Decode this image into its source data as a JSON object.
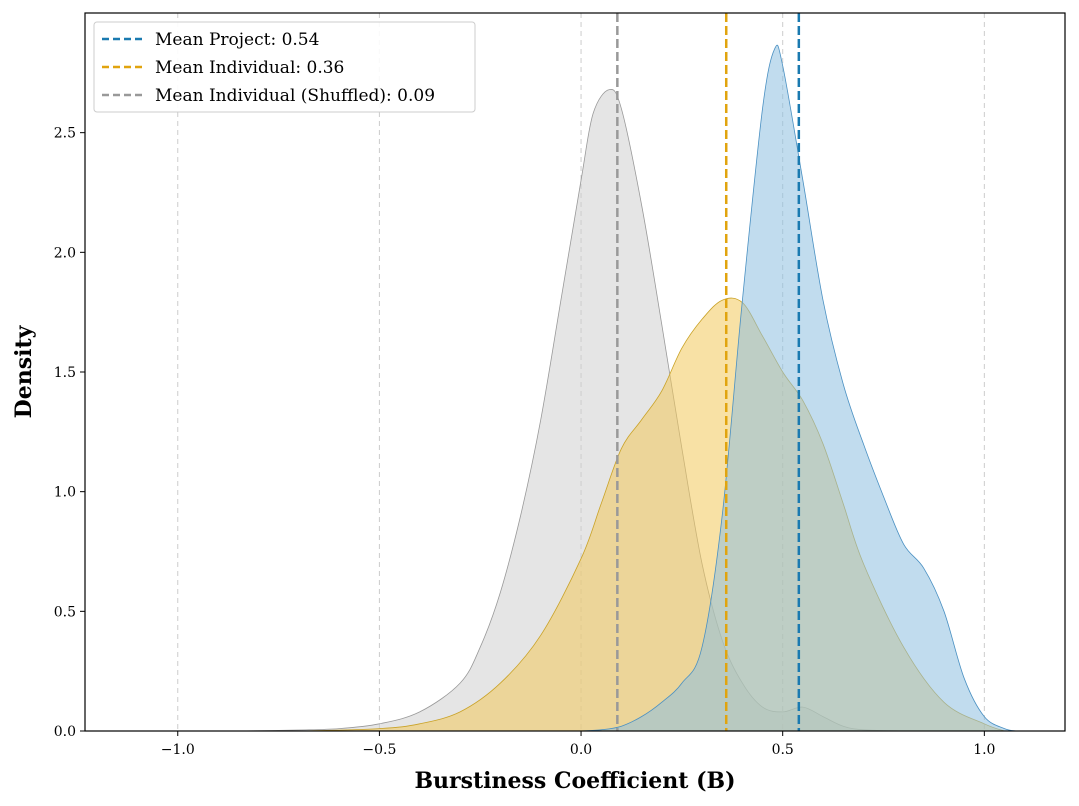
{
  "chart_data": {
    "type": "area",
    "title": "",
    "xlabel": "Burstiness Coefficient (B)",
    "ylabel": "Density",
    "xlim": [
      -1.23,
      1.2
    ],
    "ylim": [
      0,
      3.0
    ],
    "x_ticks": [
      -1.0,
      -0.5,
      0.0,
      0.5,
      1.0
    ],
    "x_tick_labels": [
      "−1.0",
      "−0.5",
      "0.0",
      "0.5",
      "1.0"
    ],
    "y_ticks": [
      0.0,
      0.5,
      1.0,
      1.5,
      2.0,
      2.5
    ],
    "y_tick_labels": [
      "0.0",
      "0.5",
      "1.0",
      "1.5",
      "2.0",
      "2.5"
    ],
    "grid": "vertical dashed",
    "legend_position": "top-left",
    "series": [
      {
        "name": "Individual (Shuffled)",
        "color": "#999999",
        "fill": "#cfcfcf",
        "x": [
          -0.85,
          -0.7,
          -0.6,
          -0.5,
          -0.4,
          -0.3,
          -0.25,
          -0.2,
          -0.15,
          -0.1,
          -0.05,
          0.0,
          0.03,
          0.07,
          0.1,
          0.15,
          0.2,
          0.25,
          0.3,
          0.35,
          0.4,
          0.45,
          0.5,
          0.55,
          0.6,
          0.65,
          0.7,
          0.8
        ],
        "values": [
          0.0,
          0.004,
          0.01,
          0.03,
          0.08,
          0.2,
          0.35,
          0.58,
          0.9,
          1.3,
          1.8,
          2.3,
          2.58,
          2.68,
          2.6,
          2.2,
          1.7,
          1.18,
          0.7,
          0.38,
          0.2,
          0.1,
          0.08,
          0.1,
          0.06,
          0.02,
          0.005,
          0.0
        ]
      },
      {
        "name": "Individual",
        "color": "#c9a227",
        "fill": "#f2c95b",
        "x": [
          -0.7,
          -0.5,
          -0.4,
          -0.3,
          -0.2,
          -0.1,
          0.0,
          0.05,
          0.1,
          0.15,
          0.2,
          0.25,
          0.3,
          0.35,
          0.4,
          0.45,
          0.5,
          0.55,
          0.6,
          0.65,
          0.7,
          0.8,
          0.9,
          1.0,
          1.05
        ],
        "values": [
          0.0,
          0.01,
          0.03,
          0.08,
          0.2,
          0.4,
          0.72,
          0.95,
          1.18,
          1.3,
          1.42,
          1.6,
          1.72,
          1.8,
          1.79,
          1.65,
          1.5,
          1.38,
          1.2,
          0.95,
          0.7,
          0.35,
          0.12,
          0.03,
          0.0
        ]
      },
      {
        "name": "Project",
        "color": "#4a90c2",
        "fill": "#8ec0e0",
        "x": [
          0.0,
          0.05,
          0.1,
          0.15,
          0.2,
          0.25,
          0.3,
          0.35,
          0.4,
          0.45,
          0.48,
          0.5,
          0.55,
          0.6,
          0.65,
          0.7,
          0.75,
          0.8,
          0.85,
          0.9,
          0.95,
          1.0,
          1.05,
          1.08
        ],
        "values": [
          0.0,
          0.005,
          0.02,
          0.06,
          0.12,
          0.2,
          0.35,
          0.9,
          1.8,
          2.6,
          2.85,
          2.78,
          2.3,
          1.8,
          1.45,
          1.2,
          0.98,
          0.78,
          0.68,
          0.5,
          0.22,
          0.06,
          0.01,
          0.0
        ]
      }
    ],
    "mean_lines": [
      {
        "label": "Mean Project: 0.54",
        "x": 0.54,
        "color": "#1a7ab0"
      },
      {
        "label": "Mean Individual: 0.36",
        "x": 0.36,
        "color": "#e1a40e"
      },
      {
        "label": "Mean Individual (Shuffled): 0.09",
        "x": 0.09,
        "color": "#999999"
      }
    ]
  }
}
